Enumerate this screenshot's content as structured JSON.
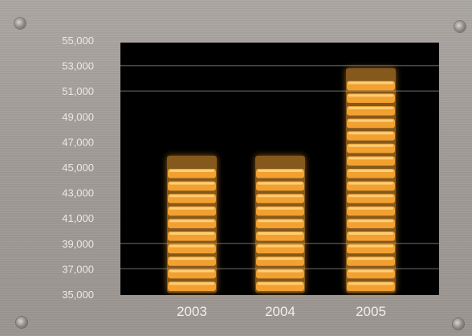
{
  "chart_data": {
    "type": "bar",
    "categories": [
      "2003",
      "2004",
      "2005"
    ],
    "values": [
      45900,
      45900,
      52800
    ],
    "ylim": [
      35000,
      55000
    ],
    "yticks": [
      "55,000",
      "53,000",
      "51,000",
      "49,000",
      "47,000",
      "45,000",
      "43,000",
      "41,000",
      "39,000",
      "37,000",
      "35,000"
    ],
    "ytick_values": [
      55000,
      53000,
      51000,
      49000,
      47000,
      45000,
      43000,
      41000,
      39000,
      37000,
      35000
    ],
    "gridlines": [
      53000,
      51000,
      39000,
      37000
    ],
    "title": "",
    "xlabel": "",
    "ylabel": "",
    "legend": "none",
    "colors": {
      "bar": "#f2a030",
      "bar_stripe": "#ffd98a",
      "plot_bg": "#000000",
      "panel": "#a39e9a"
    }
  }
}
